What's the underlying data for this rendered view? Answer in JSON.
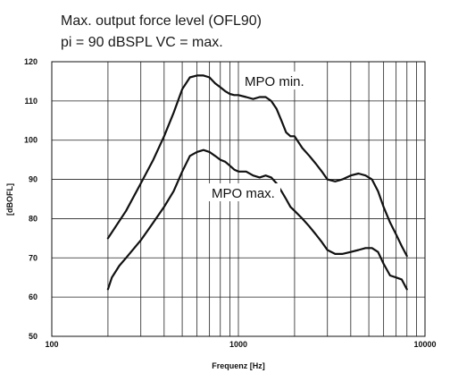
{
  "chart_data": {
    "type": "line",
    "title_lines": [
      "Max. output force level (OFL90)",
      "pi = 90 dBSPL  VC = max."
    ],
    "xlabel": "Frequenz [Hz]",
    "ylabel": "[dBOFL]",
    "x_scale": "log",
    "xlim": [
      100,
      10000
    ],
    "ylim": [
      50,
      120
    ],
    "x_tick_labels": [
      {
        "value": 100,
        "label": "100"
      },
      {
        "value": 1000,
        "label": "1000"
      },
      {
        "value": 10000,
        "label": "10000"
      }
    ],
    "y_ticks": [
      50,
      60,
      70,
      80,
      90,
      100,
      110,
      120
    ],
    "grid": {
      "x_minor_log": true,
      "y_major": true
    },
    "annotations": [
      {
        "text": "MPO min.",
        "series": "upper"
      },
      {
        "text": "MPO max.",
        "series": "lower"
      }
    ],
    "series": [
      {
        "key": "upper",
        "x": [
          200,
          250,
          300,
          350,
          400,
          450,
          500,
          550,
          600,
          650,
          700,
          750,
          800,
          850,
          900,
          950,
          1000,
          1100,
          1200,
          1300,
          1400,
          1500,
          1600,
          1700,
          1800,
          1900,
          2000,
          2200,
          2400,
          2600,
          2800,
          3000,
          3300,
          3600,
          4000,
          4400,
          4800,
          5200,
          5600,
          6000,
          6500,
          7000,
          7500,
          8000
        ],
        "y": [
          75,
          82,
          89,
          95,
          101,
          107,
          113,
          116,
          116.5,
          116.5,
          116,
          114.5,
          113.5,
          112.5,
          111.8,
          111.5,
          111.5,
          111,
          110.5,
          111,
          111,
          110,
          108,
          105,
          102,
          101,
          101,
          98,
          96,
          94,
          92,
          90,
          89.5,
          90,
          91,
          91.5,
          91,
          90,
          87,
          83,
          79,
          76,
          73,
          70.5
        ]
      },
      {
        "key": "lower",
        "x": [
          200,
          210,
          230,
          250,
          300,
          350,
          400,
          450,
          500,
          550,
          600,
          650,
          700,
          750,
          800,
          850,
          900,
          950,
          1000,
          1100,
          1200,
          1300,
          1400,
          1500,
          1600,
          1700,
          1800,
          1900,
          2000,
          2200,
          2400,
          2600,
          2800,
          3000,
          3300,
          3600,
          4000,
          4400,
          4800,
          5200,
          5600,
          6000,
          6500,
          7000,
          7500,
          8000
        ],
        "y": [
          62,
          65,
          68,
          70,
          74.5,
          79,
          83,
          87,
          92,
          96,
          97,
          97.5,
          97,
          96,
          95,
          94.5,
          93.5,
          92.5,
          92,
          92,
          91,
          90.5,
          91,
          90.5,
          89,
          87,
          85,
          83,
          82,
          80,
          78,
          76,
          74,
          72,
          71,
          71,
          71.5,
          72,
          72.5,
          72.5,
          71.5,
          68.5,
          65.5,
          65,
          64.5,
          62
        ]
      }
    ]
  }
}
